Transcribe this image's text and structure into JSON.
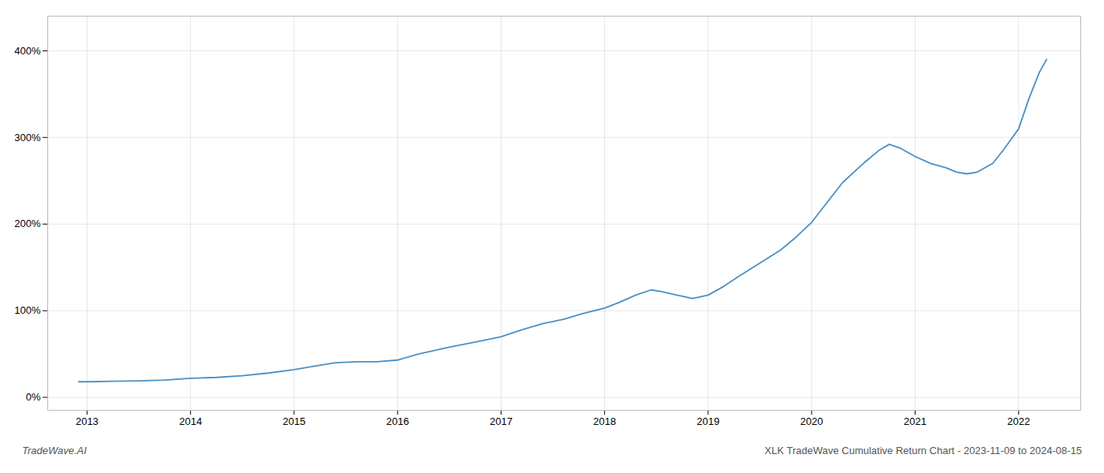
{
  "chart_data": {
    "type": "line",
    "title": "XLK TradeWave Cumulative Return Chart - 2023-11-09 to 2024-08-15",
    "annotations": [
      "TradeWave.AI"
    ],
    "x": [
      2012.92,
      2013.0,
      2013.25,
      2013.5,
      2013.75,
      2014.0,
      2014.25,
      2014.5,
      2014.75,
      2015.0,
      2015.2,
      2015.4,
      2015.6,
      2015.8,
      2016.0,
      2016.2,
      2016.5,
      2016.8,
      2017.0,
      2017.2,
      2017.4,
      2017.6,
      2017.8,
      2018.0,
      2018.15,
      2018.3,
      2018.45,
      2018.55,
      2018.7,
      2018.85,
      2019.0,
      2019.15,
      2019.3,
      2019.5,
      2019.7,
      2019.85,
      2020.0,
      2020.15,
      2020.3,
      2020.5,
      2020.65,
      2020.75,
      2020.85,
      2021.0,
      2021.15,
      2021.3,
      2021.4,
      2021.5,
      2021.6,
      2021.75,
      2021.85,
      2022.0,
      2022.1,
      2022.2,
      2022.27
    ],
    "values": [
      18,
      18,
      18.5,
      19,
      20,
      22,
      23,
      25,
      28,
      32,
      36,
      40,
      41,
      41,
      43,
      50,
      58,
      65,
      70,
      78,
      85,
      90,
      97,
      103,
      110,
      118,
      124,
      122,
      118,
      114,
      118,
      128,
      140,
      155,
      170,
      185,
      202,
      225,
      248,
      270,
      285,
      292,
      288,
      278,
      270,
      265,
      260,
      258,
      260,
      270,
      285,
      310,
      345,
      375,
      390
    ],
    "color": "#4a90c4",
    "xlim": [
      2012.62,
      2022.6
    ],
    "xticks": [
      2013,
      2014,
      2015,
      2016,
      2017,
      2018,
      2019,
      2020,
      2021,
      2022
    ],
    "ylim": [
      -15,
      440
    ],
    "yticks": [
      {
        "value": 0,
        "label": "0%"
      },
      {
        "value": 100,
        "label": "100%"
      },
      {
        "value": 200,
        "label": "200%"
      },
      {
        "value": 300,
        "label": "300%"
      },
      {
        "value": 400,
        "label": "400%"
      }
    ],
    "grid": true
  }
}
